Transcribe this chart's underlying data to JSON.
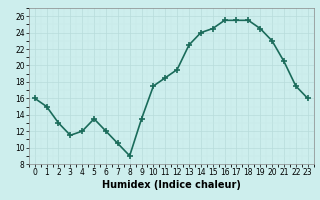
{
  "x": [
    0,
    1,
    2,
    3,
    4,
    5,
    6,
    7,
    8,
    9,
    10,
    11,
    12,
    13,
    14,
    15,
    16,
    17,
    18,
    19,
    20,
    21,
    22,
    23
  ],
  "y": [
    16,
    15,
    13,
    11.5,
    12,
    13.5,
    12,
    10.5,
    9,
    13.5,
    17.5,
    18.5,
    19.5,
    22.5,
    24,
    24.5,
    25.5,
    25.5,
    25.5,
    24.5,
    23,
    20.5,
    17.5,
    16
  ],
  "xlabel": "Humidex (Indice chaleur)",
  "ylim": [
    8,
    27
  ],
  "xlim": [
    -0.5,
    23.5
  ],
  "yticks": [
    8,
    10,
    12,
    14,
    16,
    18,
    20,
    22,
    24,
    26
  ],
  "xticks": [
    0,
    1,
    2,
    3,
    4,
    5,
    6,
    7,
    8,
    9,
    10,
    11,
    12,
    13,
    14,
    15,
    16,
    17,
    18,
    19,
    20,
    21,
    22,
    23
  ],
  "line_color": "#1a6b5a",
  "marker": "+",
  "marker_size": 4,
  "bg_color": "#cdeeed",
  "grid_major_color": "#b8dcdb",
  "grid_minor_color": "#c8e8e7",
  "line_width": 1.2,
  "xlabel_fontsize": 7,
  "tick_fontsize": 5.5
}
